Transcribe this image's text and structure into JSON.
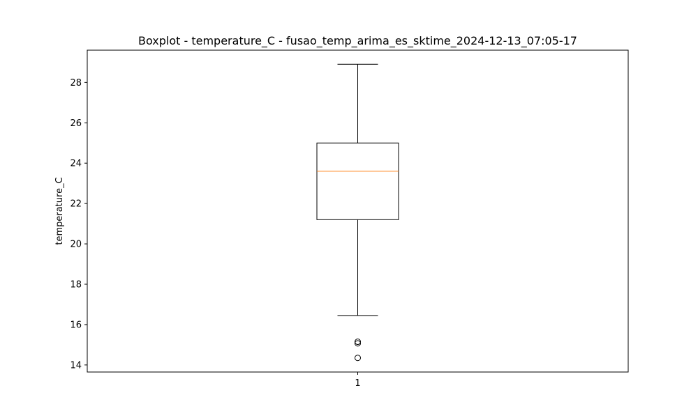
{
  "chart_data": {
    "type": "box",
    "title": "Boxplot - temperature_C - fusao_temp_arima_es_sktime_2024-12-13_07:05-17",
    "xlabel": "",
    "ylabel": "temperature_C",
    "categories": [
      "1"
    ],
    "ylim": [
      13.65,
      29.6
    ],
    "yticks": [
      14,
      16,
      18,
      20,
      22,
      24,
      26,
      28
    ],
    "grid": false,
    "legend": "none",
    "boxes": [
      {
        "category": "1",
        "whisker_low": 16.45,
        "q1": 21.2,
        "median": 23.6,
        "q3": 25.0,
        "whisker_high": 28.9,
        "outliers": [
          15.15,
          15.07,
          14.35
        ]
      }
    ],
    "colors": {
      "box": "#000000",
      "median": "#ff7f0e",
      "outlier": "#000000"
    }
  }
}
